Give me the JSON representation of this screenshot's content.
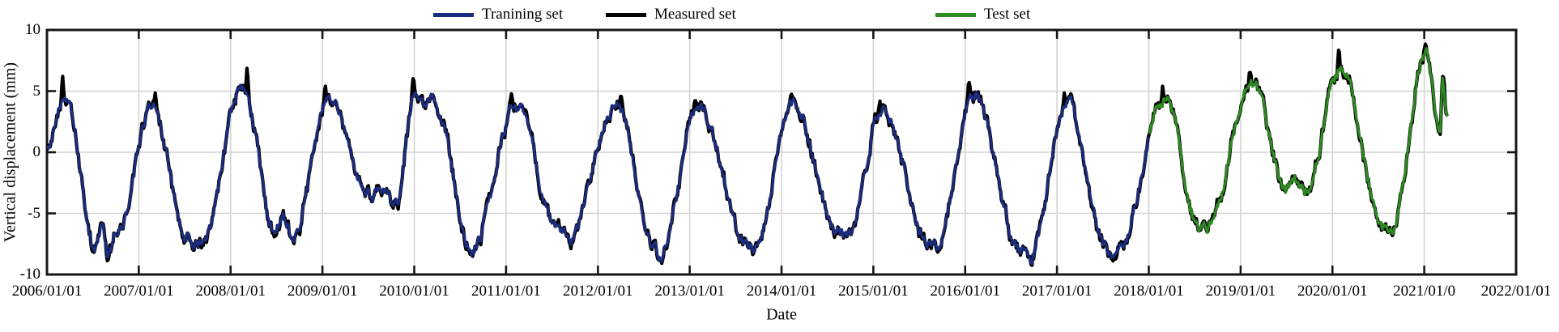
{
  "legend": {
    "items": [
      {
        "label": "Tranining set",
        "color": "#1b2d80"
      },
      {
        "label": "Measured set",
        "color": "#000000"
      },
      {
        "label": "Test set",
        "color": "#2e8b22"
      }
    ]
  },
  "chart_data": {
    "type": "line",
    "title": "",
    "xlabel": "Date",
    "ylabel": "Vertical displacement (mm)",
    "x_range_years": [
      2006,
      2022
    ],
    "ylim": [
      -10,
      10
    ],
    "grid": {
      "show": true,
      "color": "#d3d3d3"
    },
    "frame_color": "#161616",
    "legend_position": "top-center",
    "x_ticks": [
      {
        "year": 2006,
        "label": "2006/01/01"
      },
      {
        "year": 2007,
        "label": "2007/01/01"
      },
      {
        "year": 2008,
        "label": "2008/01/01"
      },
      {
        "year": 2009,
        "label": "2009/01/01"
      },
      {
        "year": 2010,
        "label": "2010/01/01"
      },
      {
        "year": 2011,
        "label": "2011/01/01"
      },
      {
        "year": 2012,
        "label": "2012/01/01"
      },
      {
        "year": 2013,
        "label": "2013/01/01"
      },
      {
        "year": 2014,
        "label": "2014/01/01"
      },
      {
        "year": 2015,
        "label": "2015/01/01"
      },
      {
        "year": 2016,
        "label": "2016/01/01"
      },
      {
        "year": 2017,
        "label": "2017/01/01"
      },
      {
        "year": 2018,
        "label": "2018/01/01"
      },
      {
        "year": 2019,
        "label": "2019/01/01"
      },
      {
        "year": 2020,
        "label": "2020/01/01"
      },
      {
        "year": 2021,
        "label": "2021/01/0"
      },
      {
        "year": 2022,
        "label": "2022/01/01"
      }
    ],
    "y_ticks": [
      {
        "value": 10,
        "label": "10"
      },
      {
        "value": 5,
        "label": "5"
      },
      {
        "value": 0,
        "label": "0"
      },
      {
        "value": -5,
        "label": "-5"
      },
      {
        "value": -10,
        "label": "-10"
      }
    ],
    "series": [
      {
        "name": "Measured set",
        "color": "#000000",
        "role": "measured",
        "t_start": 2006.0,
        "t_end": 2021.25,
        "line_width": 4.2
      },
      {
        "name": "Tranining set",
        "color": "#1b2d80",
        "role": "model",
        "t_start": 2006.0,
        "t_end": 2018.0,
        "line_width": 3.0
      },
      {
        "name": "Test set",
        "color": "#2e8b22",
        "role": "model",
        "t_start": 2018.0,
        "t_end": 2021.25,
        "line_width": 3.0
      }
    ],
    "seasonal_anchors": [
      {
        "t": 2006.0,
        "v": 0.5
      },
      {
        "t": 2006.2,
        "v": 4.7
      },
      {
        "t": 2006.53,
        "v": -7.8
      },
      {
        "t": 2006.6,
        "v": -6.3
      },
      {
        "t": 2006.66,
        "v": -8.5
      },
      {
        "t": 2006.76,
        "v": -6.7
      },
      {
        "t": 2007.15,
        "v": 3.6
      },
      {
        "t": 2007.52,
        "v": -6.8
      },
      {
        "t": 2007.6,
        "v": -7.4
      },
      {
        "t": 2007.7,
        "v": -6.9
      },
      {
        "t": 2008.13,
        "v": 5.5
      },
      {
        "t": 2008.48,
        "v": -6.3
      },
      {
        "t": 2008.58,
        "v": -5.6
      },
      {
        "t": 2008.68,
        "v": -6.9
      },
      {
        "t": 2009.06,
        "v": 4.8
      },
      {
        "t": 2009.5,
        "v": -3.6
      },
      {
        "t": 2009.62,
        "v": -2.8
      },
      {
        "t": 2009.8,
        "v": -4.1
      },
      {
        "t": 2010.02,
        "v": 5.0
      },
      {
        "t": 2010.12,
        "v": 3.8
      },
      {
        "t": 2010.2,
        "v": 4.3
      },
      {
        "t": 2010.64,
        "v": -7.9
      },
      {
        "t": 2011.1,
        "v": 3.8
      },
      {
        "t": 2011.58,
        "v": -6.6
      },
      {
        "t": 2011.68,
        "v": -7.0
      },
      {
        "t": 2012.2,
        "v": 4.0
      },
      {
        "t": 2012.6,
        "v": -7.8
      },
      {
        "t": 2012.67,
        "v": -8.3
      },
      {
        "t": 2013.1,
        "v": 3.6
      },
      {
        "t": 2013.62,
        "v": -7.3
      },
      {
        "t": 2013.7,
        "v": -7.7
      },
      {
        "t": 2014.13,
        "v": 3.9
      },
      {
        "t": 2014.62,
        "v": -6.2
      },
      {
        "t": 2014.72,
        "v": -6.6
      },
      {
        "t": 2015.1,
        "v": 3.5
      },
      {
        "t": 2015.6,
        "v": -7.2
      },
      {
        "t": 2015.68,
        "v": -7.5
      },
      {
        "t": 2016.1,
        "v": 4.6
      },
      {
        "t": 2016.6,
        "v": -7.9
      },
      {
        "t": 2016.72,
        "v": -8.2
      },
      {
        "t": 2017.1,
        "v": 4.0
      },
      {
        "t": 2017.58,
        "v": -8.0
      },
      {
        "t": 2017.65,
        "v": -8.4
      },
      {
        "t": 2018.18,
        "v": 4.4
      },
      {
        "t": 2018.55,
        "v": -6.0
      },
      {
        "t": 2018.63,
        "v": -6.4
      },
      {
        "t": 2019.12,
        "v": 5.6
      },
      {
        "t": 2019.5,
        "v": -2.9
      },
      {
        "t": 2019.58,
        "v": -2.5
      },
      {
        "t": 2019.7,
        "v": -3.4
      },
      {
        "t": 2020.1,
        "v": 7.1
      },
      {
        "t": 2020.55,
        "v": -5.8
      },
      {
        "t": 2020.64,
        "v": -6.3
      },
      {
        "t": 2021.02,
        "v": 8.3
      },
      {
        "t": 2021.17,
        "v": 1.9
      },
      {
        "t": 2021.2,
        "v": 5.7
      },
      {
        "t": 2021.25,
        "v": 3.2
      }
    ],
    "measured_spikes": [
      {
        "t": 2006.17,
        "v": 6.3
      },
      {
        "t": 2006.66,
        "v": -8.9
      },
      {
        "t": 2007.18,
        "v": 4.9
      },
      {
        "t": 2008.18,
        "v": 7.1
      },
      {
        "t": 2009.03,
        "v": 5.6
      },
      {
        "t": 2009.99,
        "v": 6.3
      },
      {
        "t": 2011.06,
        "v": 4.9
      },
      {
        "t": 2012.25,
        "v": 4.9
      },
      {
        "t": 2012.66,
        "v": -8.8
      },
      {
        "t": 2013.06,
        "v": 4.4
      },
      {
        "t": 2014.11,
        "v": 4.8
      },
      {
        "t": 2015.07,
        "v": 4.3
      },
      {
        "t": 2016.04,
        "v": 6.0
      },
      {
        "t": 2016.7,
        "v": -8.5
      },
      {
        "t": 2017.08,
        "v": 4.9
      },
      {
        "t": 2017.64,
        "v": -8.8
      },
      {
        "t": 2018.15,
        "v": 5.4
      },
      {
        "t": 2019.1,
        "v": 6.8
      },
      {
        "t": 2020.07,
        "v": 8.7
      },
      {
        "t": 2021.01,
        "v": 8.9
      },
      {
        "t": 2021.21,
        "v": 6.1
      }
    ],
    "sample_step_years": 0.009,
    "noise_seed": 7,
    "measured_noise_amp": 0.42,
    "model_noise_scale": 0.8
  }
}
